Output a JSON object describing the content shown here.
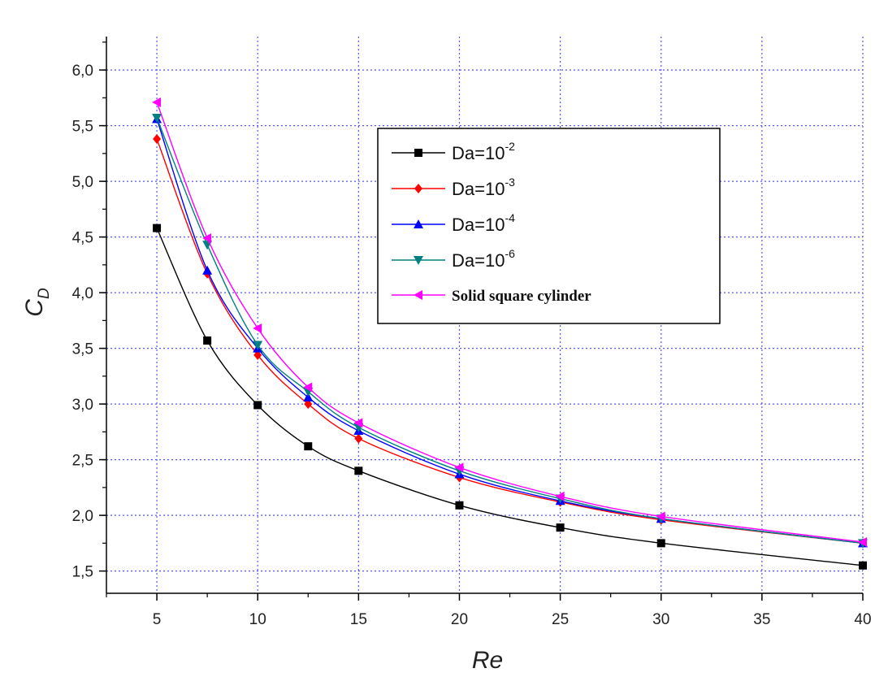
{
  "chart_data": {
    "type": "line",
    "xlabel": "Re",
    "ylabel": "C",
    "ylabel_subscript": "D",
    "x": [
      5,
      7.5,
      10,
      12.5,
      15,
      20,
      25,
      30,
      40
    ],
    "xlim": [
      2.5,
      40
    ],
    "ylim": [
      1.3,
      6.3
    ],
    "x_ticks": [
      "5",
      "10",
      "15",
      "20",
      "25",
      "30",
      "35",
      "40"
    ],
    "y_ticks": [
      "1,5",
      "2,0",
      "2,5",
      "3,0",
      "3,5",
      "4,0",
      "4,5",
      "5,0",
      "5,5",
      "6,0"
    ],
    "grid": true,
    "legend_position": "top-right",
    "series": [
      {
        "name": "Da=10",
        "exponent": "-2",
        "color": "#000000",
        "marker": "square",
        "values": [
          4.58,
          3.57,
          2.99,
          2.62,
          2.4,
          2.09,
          1.89,
          1.75,
          1.55
        ]
      },
      {
        "name": "Da=10",
        "exponent": "-3",
        "color": "#ff0000",
        "marker": "diamond",
        "values": [
          5.38,
          4.17,
          3.44,
          3.0,
          2.69,
          2.34,
          2.12,
          1.96,
          1.75
        ]
      },
      {
        "name": "Da=10",
        "exponent": "-4",
        "color": "#0000ff",
        "marker": "triangle-up",
        "values": [
          5.56,
          4.2,
          3.5,
          3.06,
          2.76,
          2.37,
          2.13,
          1.97,
          1.75
        ]
      },
      {
        "name": "Da=10",
        "exponent": "-6",
        "color": "#008080",
        "marker": "triangle-down",
        "values": [
          5.57,
          4.43,
          3.53,
          3.11,
          2.79,
          2.4,
          2.15,
          1.97,
          1.75
        ]
      },
      {
        "name": "Solid square cylinder",
        "exponent": "",
        "color": "#ff00ff",
        "marker": "triangle-left",
        "values": [
          5.71,
          4.49,
          3.68,
          3.15,
          2.83,
          2.43,
          2.17,
          1.99,
          1.76
        ]
      }
    ]
  }
}
